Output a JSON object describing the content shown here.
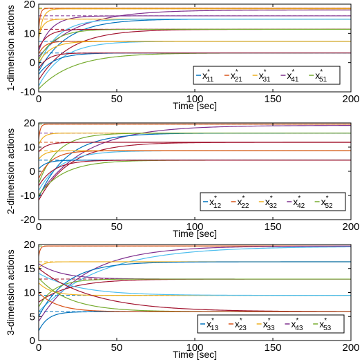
{
  "chart_data": [
    {
      "type": "line",
      "xlabel": "Time [sec]",
      "ylabel": "1-dimension actions",
      "xlim": [
        0,
        200
      ],
      "ylim": [
        -10,
        20
      ],
      "xticks": [
        0,
        50,
        100,
        150,
        200
      ],
      "yticks": [
        -10,
        0,
        10,
        20
      ],
      "xtick_labels": [
        "0",
        "50",
        "100",
        "150",
        "200"
      ],
      "ytick_labels": [
        "-10",
        "0",
        "10",
        "20"
      ],
      "grid": false,
      "legend_position": "lower-right",
      "legend": [
        {
          "base": "x",
          "sub": "11",
          "sup": "*",
          "color": "#0072BD"
        },
        {
          "base": "x",
          "sub": "21",
          "sup": "*",
          "color": "#D95319"
        },
        {
          "base": "x",
          "sub": "31",
          "sup": "*",
          "color": "#EDB120"
        },
        {
          "base": "x",
          "sub": "41",
          "sup": "*",
          "color": "#7E2F8E"
        },
        {
          "base": "x",
          "sub": "51",
          "sup": "*",
          "color": "#77AC30"
        }
      ],
      "equilibria": [
        {
          "value": 18.6,
          "color": "#77AC30"
        },
        {
          "value": 18.4,
          "color": "#EDB120"
        },
        {
          "value": 16.0,
          "color": "#7E2F8E"
        },
        {
          "value": 14.9,
          "color": "#D95319"
        },
        {
          "value": 11.4,
          "color": "#A2142F"
        },
        {
          "value": 7.3,
          "color": "#0072BD"
        },
        {
          "value": 3.3,
          "color": "#0072BD"
        }
      ],
      "trajectories": [
        {
          "color": "#D95319",
          "start": 11.0,
          "end": 18.6,
          "tau": 1.0
        },
        {
          "color": "#EDB120",
          "start": 8.0,
          "end": 18.4,
          "tau": 2.5
        },
        {
          "color": "#7E2F8E",
          "start": 2.0,
          "end": 18.0,
          "tau": 25
        },
        {
          "color": "#7E2F8E",
          "start": 4.0,
          "end": 16.0,
          "tau": 8
        },
        {
          "color": "#EDB120",
          "start": 9.0,
          "end": 14.9,
          "tau": 3
        },
        {
          "color": "#0072BD",
          "start": -3.0,
          "end": 14.9,
          "tau": 18
        },
        {
          "color": "#4DBEEE",
          "start": -1.0,
          "end": 14.9,
          "tau": 12
        },
        {
          "color": "#A2142F",
          "start": 5.0,
          "end": 11.4,
          "tau": 6
        },
        {
          "color": "#A2142F",
          "start": -6.0,
          "end": 11.4,
          "tau": 20
        },
        {
          "color": "#77AC30",
          "start": 1.0,
          "end": 11.4,
          "tau": 10
        },
        {
          "color": "#D95319",
          "start": 3.0,
          "end": 7.3,
          "tau": 4
        },
        {
          "color": "#4DBEEE",
          "start": -8.0,
          "end": 7.3,
          "tau": 15
        },
        {
          "color": "#EDB120",
          "start": 0.0,
          "end": 7.3,
          "tau": 8
        },
        {
          "color": "#77AC30",
          "start": -9.0,
          "end": 3.3,
          "tau": 22
        },
        {
          "color": "#0072BD",
          "start": -4.0,
          "end": 3.3,
          "tau": 10
        },
        {
          "color": "#A2142F",
          "start": -2.0,
          "end": 3.3,
          "tau": 6
        }
      ]
    },
    {
      "type": "line",
      "xlabel": "Time [sec]",
      "ylabel": "2-dimension actions",
      "xlim": [
        0,
        200
      ],
      "ylim": [
        -20,
        20
      ],
      "xticks": [
        0,
        50,
        100,
        150,
        200
      ],
      "yticks": [
        -20,
        -10,
        0,
        10,
        20
      ],
      "xtick_labels": [
        "0",
        "50",
        "100",
        "150",
        "200"
      ],
      "ytick_labels": [
        "-20",
        "-10",
        "0",
        "10",
        "20"
      ],
      "grid": false,
      "legend_position": "lower-right",
      "legend": [
        {
          "base": "x",
          "sub": "12",
          "sup": "*",
          "color": "#0072BD"
        },
        {
          "base": "x",
          "sub": "22",
          "sup": "*",
          "color": "#D95319"
        },
        {
          "base": "x",
          "sub": "32",
          "sup": "*",
          "color": "#EDB120"
        },
        {
          "base": "x",
          "sub": "42",
          "sup": "*",
          "color": "#7E2F8E"
        },
        {
          "base": "x",
          "sub": "52",
          "sup": "*",
          "color": "#77AC30"
        }
      ],
      "equilibria": [
        {
          "value": 19.5,
          "color": "#77AC30"
        },
        {
          "value": 15.8,
          "color": "#7E2F8E"
        },
        {
          "value": 12.0,
          "color": "#D95319"
        },
        {
          "value": 8.5,
          "color": "#EDB120"
        },
        {
          "value": 4.6,
          "color": "#0072BD"
        }
      ],
      "trajectories": [
        {
          "color": "#D95319",
          "start": 13.0,
          "end": 19.5,
          "tau": 1.0
        },
        {
          "color": "#7E2F8E",
          "start": -10.0,
          "end": 19.0,
          "tau": 30
        },
        {
          "color": "#EDB120",
          "start": 11.0,
          "end": 15.8,
          "tau": 3
        },
        {
          "color": "#0072BD",
          "start": -11.0,
          "end": 15.8,
          "tau": 18
        },
        {
          "color": "#77AC30",
          "start": -5.0,
          "end": 15.8,
          "tau": 12
        },
        {
          "color": "#A2142F",
          "start": 8.0,
          "end": 12.0,
          "tau": 5
        },
        {
          "color": "#A2142F",
          "start": -12.0,
          "end": 12.0,
          "tau": 20
        },
        {
          "color": "#4DBEEE",
          "start": -8.0,
          "end": 8.5,
          "tau": 14
        },
        {
          "color": "#EDB120",
          "start": 5.0,
          "end": 8.5,
          "tau": 4
        },
        {
          "color": "#D95319",
          "start": -3.0,
          "end": 8.5,
          "tau": 8
        },
        {
          "color": "#77AC30",
          "start": -10.0,
          "end": 4.6,
          "tau": 16
        },
        {
          "color": "#0072BD",
          "start": 1.0,
          "end": 4.6,
          "tau": 5
        },
        {
          "color": "#A2142F",
          "start": -6.0,
          "end": 4.6,
          "tau": 10
        }
      ]
    },
    {
      "type": "line",
      "xlabel": "Time [sec]",
      "ylabel": "3-dimension actions",
      "xlim": [
        0,
        200
      ],
      "ylim": [
        0,
        20
      ],
      "xticks": [
        0,
        50,
        100,
        150,
        200
      ],
      "yticks": [
        0,
        5,
        10,
        15,
        20
      ],
      "xtick_labels": [
        "0",
        "50",
        "100",
        "150",
        "200"
      ],
      "ytick_labels": [
        "0",
        "5",
        "10",
        "15",
        "20"
      ],
      "grid": false,
      "legend_position": "lower-right",
      "legend": [
        {
          "base": "x",
          "sub": "13",
          "sup": "*",
          "color": "#0072BD"
        },
        {
          "base": "x",
          "sub": "23",
          "sup": "*",
          "color": "#D95319"
        },
        {
          "base": "x",
          "sub": "33",
          "sup": "*",
          "color": "#EDB120"
        },
        {
          "base": "x",
          "sub": "43",
          "sup": "*",
          "color": "#7E2F8E"
        },
        {
          "base": "x",
          "sub": "53",
          "sup": "*",
          "color": "#77AC30"
        }
      ],
      "equilibria": [
        {
          "value": 19.7,
          "color": "#77AC30"
        },
        {
          "value": 16.4,
          "color": "#EDB120"
        },
        {
          "value": 12.8,
          "color": "#A2142F"
        },
        {
          "value": 9.4,
          "color": "#0072BD"
        },
        {
          "value": 6.0,
          "color": "#0072BD"
        }
      ],
      "trajectories": [
        {
          "color": "#D95319",
          "start": 17.5,
          "end": 19.7,
          "tau": 1.0
        },
        {
          "color": "#7E2F8E",
          "start": 4.0,
          "end": 19.7,
          "tau": 30
        },
        {
          "color": "#4DBEEE",
          "start": 6.0,
          "end": 19.6,
          "tau": 40
        },
        {
          "color": "#EDB120",
          "start": 15.0,
          "end": 16.4,
          "tau": 3
        },
        {
          "color": "#0072BD",
          "start": 5.0,
          "end": 16.4,
          "tau": 18
        },
        {
          "color": "#A2142F",
          "start": 8.0,
          "end": 12.8,
          "tau": 20
        },
        {
          "color": "#7E2F8E",
          "start": 16.0,
          "end": 12.8,
          "tau": 15
        },
        {
          "color": "#77AC30",
          "start": 7.0,
          "end": 12.8,
          "tau": 10
        },
        {
          "color": "#EDB120",
          "start": 12.0,
          "end": 9.4,
          "tau": 8
        },
        {
          "color": "#4DBEEE",
          "start": 14.0,
          "end": 9.4,
          "tau": 25
        },
        {
          "color": "#A2142F",
          "start": 15.0,
          "end": 6.0,
          "tau": 35
        },
        {
          "color": "#77AC30",
          "start": 13.0,
          "end": 6.0,
          "tau": 20
        },
        {
          "color": "#0072BD",
          "start": 2.0,
          "end": 6.0,
          "tau": 6
        },
        {
          "color": "#D95319",
          "start": 10.0,
          "end": 6.0,
          "tau": 12
        }
      ]
    }
  ]
}
